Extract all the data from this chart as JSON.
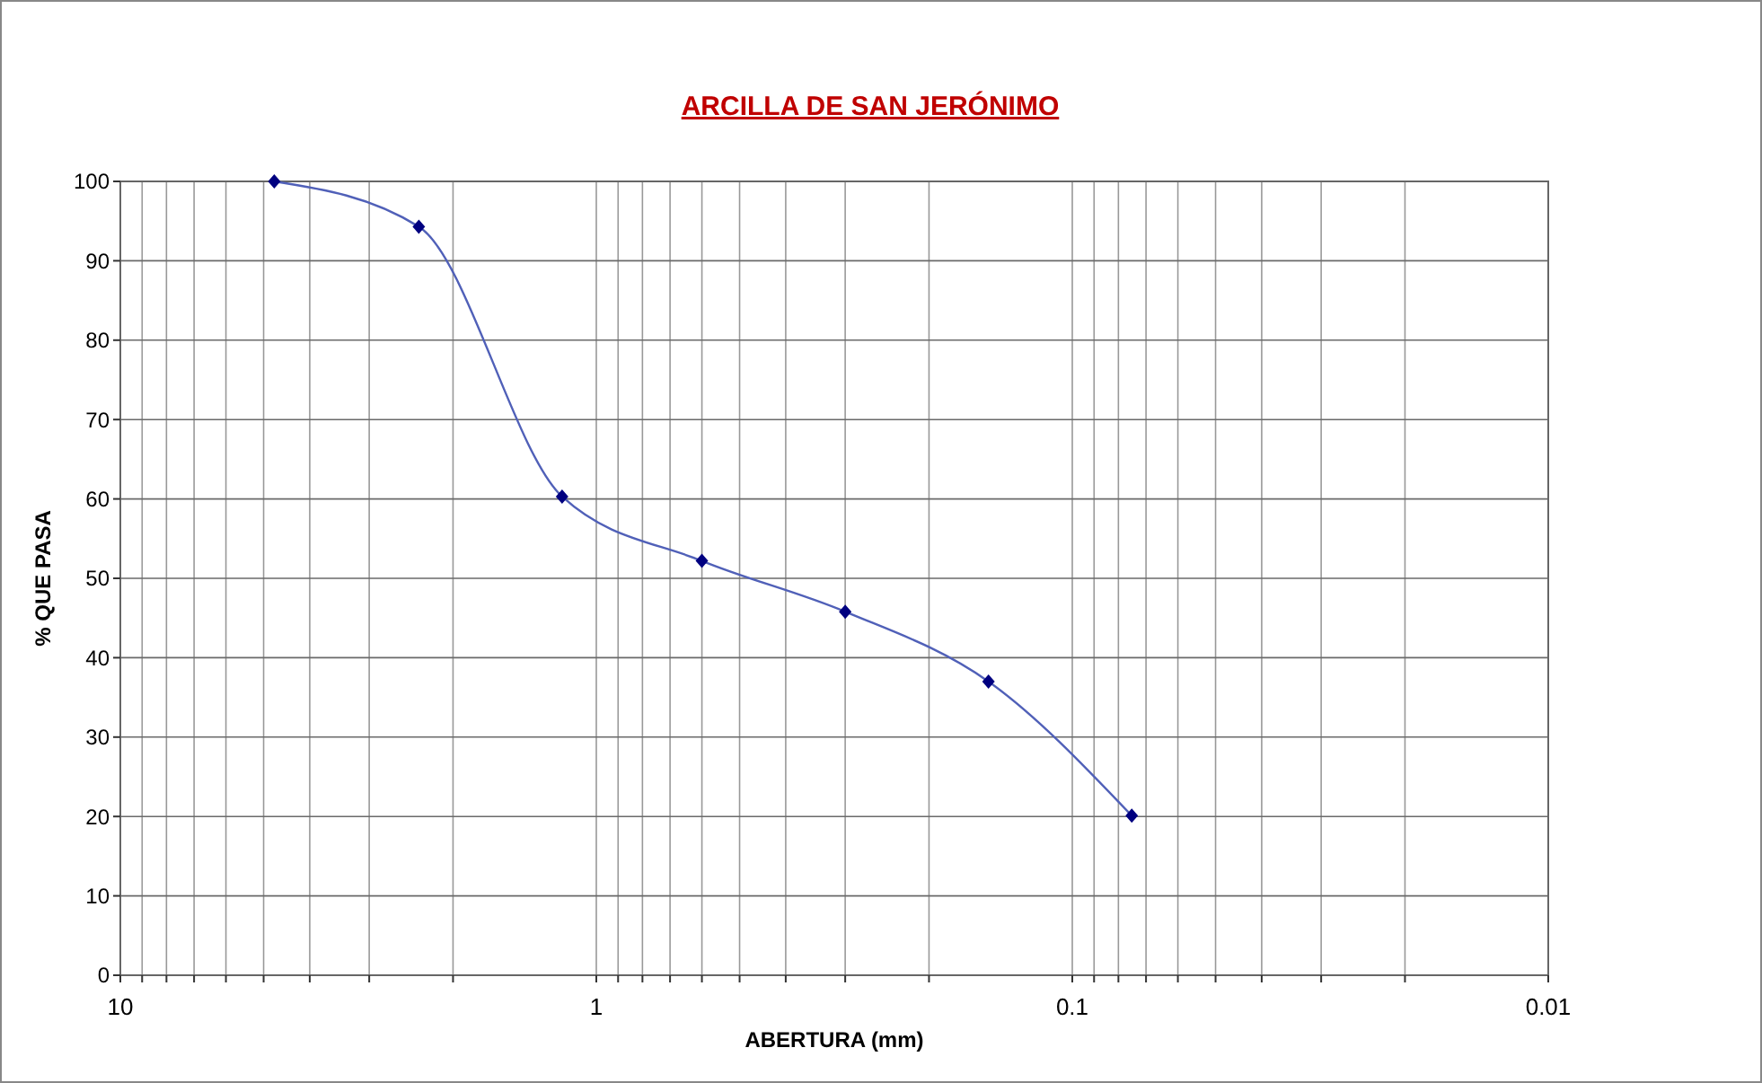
{
  "chart_data": {
    "type": "line",
    "title": "ARCILLA DE SAN JERÓNIMO",
    "xlabel": "ABERTURA (mm)",
    "ylabel": "% QUE PASA",
    "log": "x",
    "grid": true,
    "marker": "diamond",
    "line_style": "solid",
    "xlim": [
      10,
      0.01
    ],
    "ylim": [
      0,
      100
    ],
    "xticks": [
      10,
      {
        "value": 9,
        "label": null
      },
      {
        "value": 8,
        "label": null
      },
      {
        "value": 7,
        "label": null
      },
      {
        "value": 6,
        "label": null
      },
      {
        "value": 5,
        "label": null
      },
      {
        "value": 4,
        "label": null
      },
      {
        "value": 3,
        "label": null
      },
      {
        "value": 2,
        "label": null
      },
      1,
      {
        "value": 0.9,
        "label": null
      },
      {
        "value": 0.8,
        "label": null
      },
      {
        "value": 0.7,
        "label": null
      },
      {
        "value": 0.6,
        "label": null
      },
      {
        "value": 0.5,
        "label": null
      },
      {
        "value": 0.4,
        "label": null
      },
      {
        "value": 0.3,
        "label": null
      },
      {
        "value": 0.2,
        "label": null
      },
      0.1,
      {
        "value": 0.09,
        "label": null
      },
      {
        "value": 0.08,
        "label": null
      },
      {
        "value": 0.07,
        "label": null
      },
      {
        "value": 0.06,
        "label": null
      },
      {
        "value": 0.05,
        "label": null
      },
      {
        "value": 0.04,
        "label": null
      },
      {
        "value": 0.03,
        "label": null
      },
      {
        "value": 0.02,
        "label": null
      },
      0.01
    ],
    "yticks": [
      0,
      10,
      20,
      30,
      40,
      50,
      60,
      70,
      80,
      90,
      100
    ],
    "x": [
      4.75,
      2.36,
      1.18,
      0.6,
      0.3,
      0.15,
      0.075
    ],
    "series": [
      {
        "color": "#000080",
        "values": [
          100,
          94.3,
          60.3,
          52.2,
          45.8,
          37,
          20.1
        ]
      }
    ]
  }
}
